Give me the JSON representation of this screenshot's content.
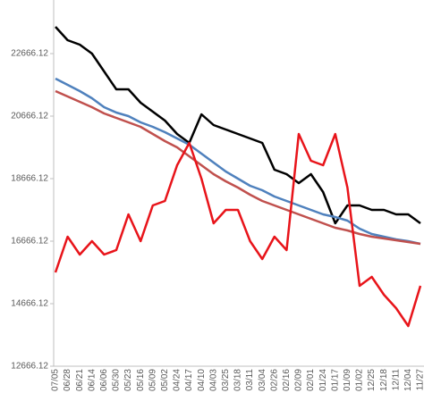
{
  "chart_data": {
    "type": "line",
    "categories": [
      "07/05",
      "06/28",
      "06/21",
      "06/14",
      "06/06",
      "05/30",
      "05/23",
      "05/16",
      "05/09",
      "05/02",
      "04/24",
      "04/17",
      "04/10",
      "04/03",
      "03/25",
      "03/18",
      "03/11",
      "03/04",
      "02/26",
      "02/16",
      "02/09",
      "02/01",
      "01/24",
      "01/17",
      "01/09",
      "01/02",
      "12/25",
      "12/18",
      "12/11",
      "12/04",
      "11/27"
    ],
    "series": [
      {
        "name": "black",
        "color": "#000000",
        "values": [
          23523,
          23095,
          22952,
          22666,
          22095,
          21523,
          21523,
          21095,
          20809,
          20523,
          20095,
          19809,
          20723,
          20380,
          20237,
          20095,
          19952,
          19809,
          18952,
          18809,
          18523,
          18809,
          18237,
          17237,
          17809,
          17809,
          17666,
          17666,
          17523,
          17523,
          17237
        ]
      },
      {
        "name": "blue",
        "color": "#4f81bd",
        "values": [
          21866,
          21666,
          21466,
          21237,
          20952,
          20780,
          20666,
          20466,
          20323,
          20152,
          19952,
          19752,
          19466,
          19180,
          18895,
          18666,
          18437,
          18295,
          18095,
          17952,
          17809,
          17666,
          17523,
          17437,
          17323,
          17066,
          16895,
          16809,
          16723,
          16666,
          16580
        ]
      },
      {
        "name": "brown",
        "color": "#c0504d",
        "values": [
          21466,
          21295,
          21123,
          20952,
          20752,
          20609,
          20466,
          20323,
          20095,
          19866,
          19666,
          19380,
          19095,
          18809,
          18580,
          18380,
          18152,
          17952,
          17809,
          17666,
          17523,
          17380,
          17237,
          17095,
          17009,
          16895,
          16809,
          16752,
          16695,
          16637,
          16580
        ]
      },
      {
        "name": "red",
        "color": "#e8141a",
        "values": [
          15666,
          16809,
          16237,
          16666,
          16237,
          16380,
          17523,
          16666,
          17809,
          17952,
          19095,
          19809,
          18666,
          17237,
          17666,
          17666,
          16666,
          16095,
          16809,
          16380,
          20095,
          19237,
          19095,
          20095,
          18380,
          15237,
          15523,
          14952,
          14523,
          13952,
          15237
        ]
      }
    ],
    "ylim": [
      12666.12,
      24380
    ],
    "yticks": [
      12666.12,
      14666.12,
      16666.12,
      18666.12,
      20666.12,
      22666.12
    ]
  }
}
